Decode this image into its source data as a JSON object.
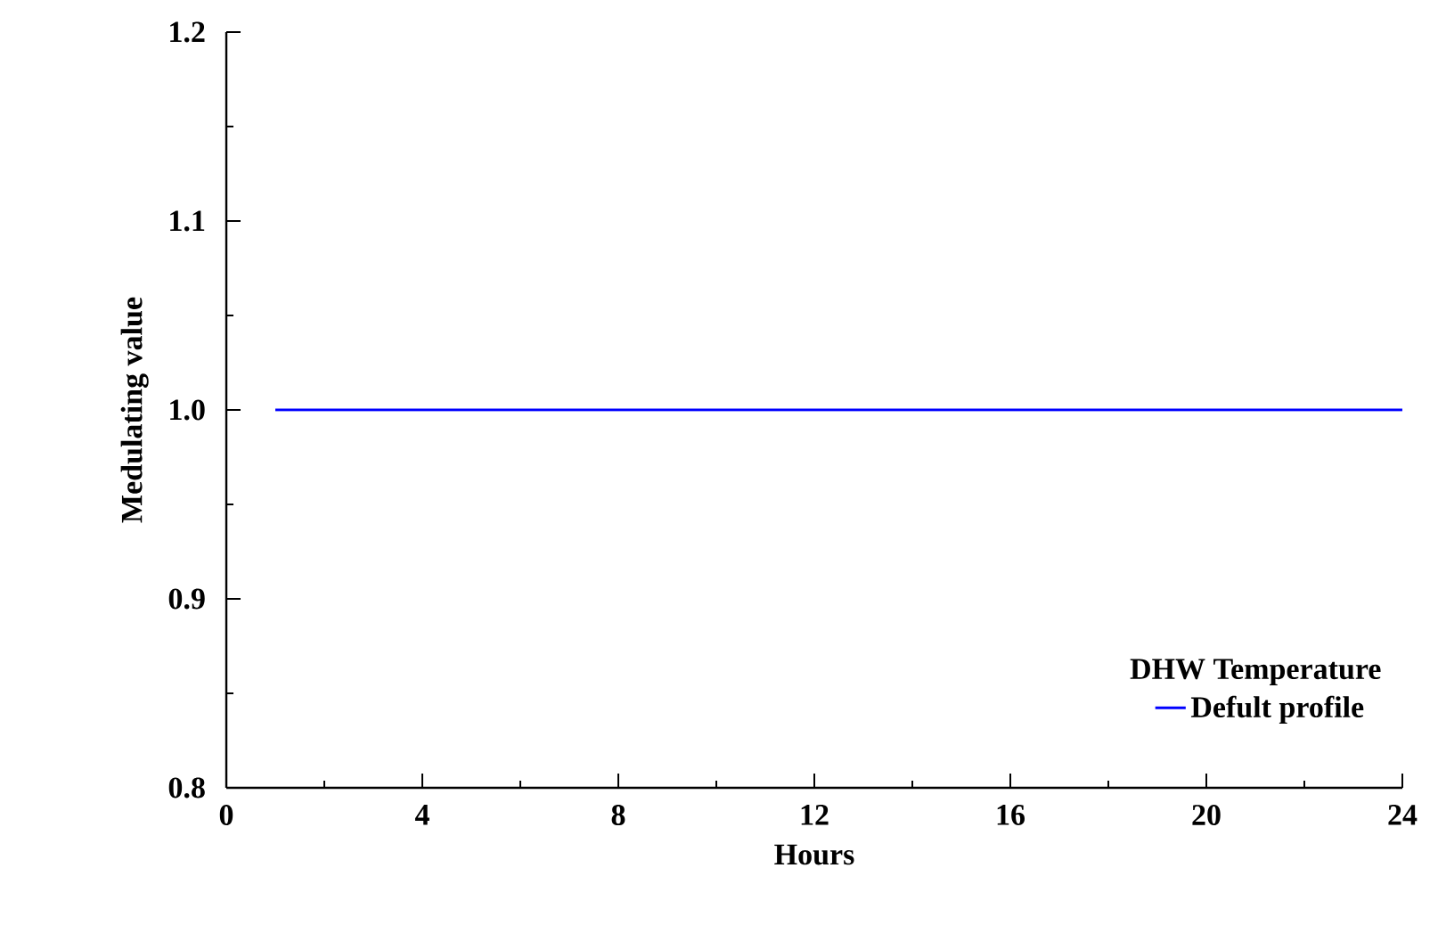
{
  "chart_data": {
    "type": "line",
    "xlabel": "Hours",
    "ylabel": "Medulating value",
    "legend_title": "DHW Temperature",
    "xlim": [
      0,
      24
    ],
    "xticks": [
      0,
      4,
      8,
      12,
      16,
      20,
      24
    ],
    "ylim": [
      0.8,
      1.2
    ],
    "yticks": [
      {
        "value": 0.8,
        "label": "0.8"
      },
      {
        "value": 0.9,
        "label": "0.9"
      },
      {
        "value": 1.0,
        "label": "1.0"
      },
      {
        "value": 1.1,
        "label": "1.1"
      },
      {
        "value": 1.2,
        "label": "1.2"
      }
    ],
    "legend": "bottom right",
    "grid": false,
    "marker": "none",
    "line_style": "solid",
    "series": [
      {
        "name": "Defult profile",
        "color": "#0000ff",
        "x": [
          1,
          24
        ],
        "values": [
          1.0,
          1.0
        ]
      }
    ]
  }
}
